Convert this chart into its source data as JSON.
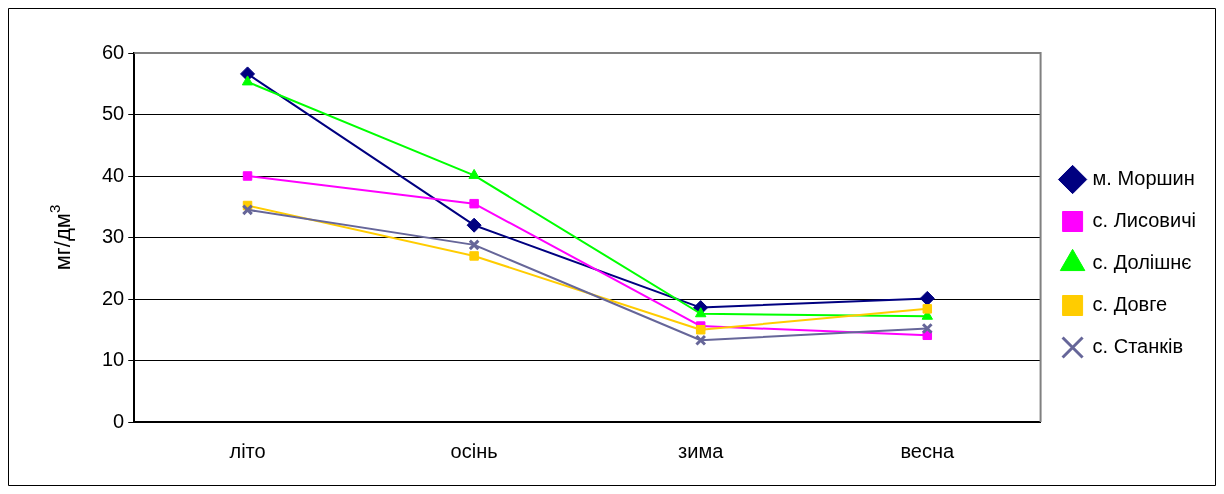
{
  "chart_data": {
    "type": "line",
    "ylabel": "мг/дм$^{3}$",
    "categories": [
      "літо",
      "осінь",
      "зима",
      "весна"
    ],
    "series": [
      {
        "name": "м. Моршин",
        "color": "#000080",
        "marker": "diamond",
        "values": [
          56.6,
          32.0,
          18.6,
          20.1
        ]
      },
      {
        "name": "с. Лисовичі",
        "color": "#ff00ff",
        "marker": "square",
        "values": [
          40.0,
          35.5,
          15.6,
          14.1
        ]
      },
      {
        "name": "с. Долішнє",
        "color": "#00ff00",
        "marker": "triangle",
        "values": [
          55.3,
          40.1,
          17.6,
          17.2
        ]
      },
      {
        "name": "с. Довге",
        "color": "#ffcc00",
        "marker": "square",
        "values": [
          35.2,
          27.0,
          15.0,
          18.4
        ]
      },
      {
        "name": "с. Станків",
        "color": "#666699",
        "marker": "cross",
        "values": [
          34.5,
          28.8,
          13.3,
          15.2
        ]
      }
    ],
    "ylim": [
      0,
      60
    ],
    "yticks": [
      0,
      10,
      20,
      30,
      40,
      50,
      60
    ],
    "grid": "y",
    "legend": "right",
    "line_style": "solid"
  }
}
